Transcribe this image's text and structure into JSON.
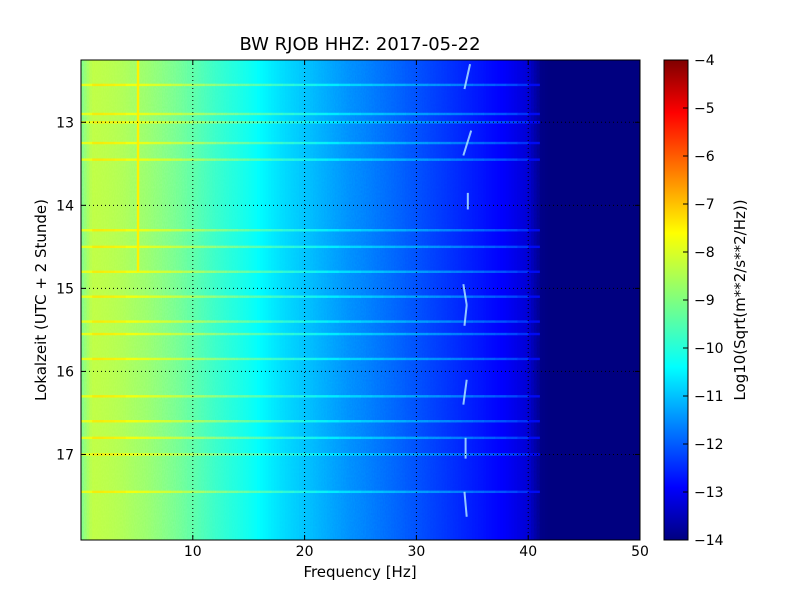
{
  "chart_data": {
    "type": "heatmap",
    "title": "BW RJOB HHZ: 2017-05-22",
    "xlabel": "Frequency [Hz]",
    "ylabel": "Lokalzeit (UTC + 2 Stunde)",
    "xlim": [
      0,
      50
    ],
    "ylim": [
      12.25,
      18.03
    ],
    "y_inverted": true,
    "x_ticks": [
      10,
      20,
      30,
      40,
      50
    ],
    "y_ticks": [
      13,
      14,
      15,
      16,
      17
    ],
    "grid": true,
    "colormap": "jet",
    "colorbar": {
      "label": "Log10(Sqrt(m**2/s**2/Hz))",
      "range": [
        -14,
        -4
      ],
      "ticks": [
        -4,
        -5,
        -6,
        -7,
        -8,
        -9,
        -10,
        -11,
        -12,
        -13,
        -14
      ]
    },
    "spectral_profile": {
      "frequency_hz": [
        0,
        1,
        3,
        6,
        9,
        12,
        15,
        18,
        21,
        24,
        27,
        30,
        33,
        36,
        38,
        40,
        41,
        42,
        50
      ],
      "log10_amplitude": [
        -9.1,
        -8.4,
        -8.5,
        -8.8,
        -9.2,
        -9.7,
        -10.1,
        -10.6,
        -11.0,
        -11.4,
        -11.7,
        -12.0,
        -12.3,
        -12.6,
        -12.8,
        -13.2,
        -13.9,
        -14.0,
        -14.0
      ]
    },
    "features": {
      "line_5hz": {
        "frequency_hz": 5.1,
        "time_start": 12.25,
        "time_end": 14.8,
        "log10_amplitude": -7.6
      },
      "energy_bands_time": [
        12.55,
        12.9,
        13.0,
        13.25,
        13.45,
        14.3,
        14.5,
        14.8,
        15.1,
        15.4,
        15.55,
        15.85,
        16.3,
        16.6,
        16.8,
        17.0,
        17.45
      ],
      "tremor_track_time_points": [
        12.3,
        12.6,
        13.1,
        13.4,
        13.85,
        14.05,
        14.95,
        15.2,
        15.45,
        16.1,
        16.4,
        16.8,
        17.05,
        17.45,
        17.75
      ],
      "tremor_track_freq_points": [
        34.8,
        34.3,
        34.9,
        34.2,
        34.6,
        34.6,
        34.2,
        34.5,
        34.3,
        34.5,
        34.2,
        34.4,
        34.4,
        34.3,
        34.5
      ]
    }
  }
}
